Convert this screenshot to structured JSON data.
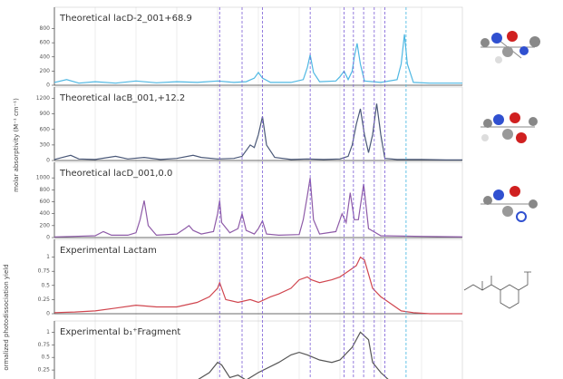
{
  "axis_labels": [
    "molar absorptivity (M⁻¹ cm⁻¹)",
    "ormalized photodissociation yield"
  ],
  "reference_lines": {
    "x": [
      40.5,
      46,
      51,
      62.7,
      71,
      73.3,
      75.8,
      78.4,
      81,
      86.2
    ],
    "colors": [
      "#7b5cd6",
      "#7b5cd6",
      "#7b5cd6",
      "#7b5cd6",
      "#7b5cd6",
      "#7b5cd6",
      "#7b5cd6",
      "#7b5cd6",
      "#7b5cd6",
      "#3fb5e0"
    ]
  },
  "chart_data": [
    {
      "type": "line",
      "title": "Theoretical lacD-2_001+68.9",
      "color": "#4fb8e3",
      "xlim": [
        0,
        100
      ],
      "ylim": [
        0,
        1050
      ],
      "yticks": [
        0,
        200,
        400,
        600,
        800
      ],
      "x": [
        0,
        3,
        6,
        10,
        15,
        20,
        25,
        30,
        35,
        40,
        44,
        47,
        49,
        50,
        51,
        53,
        58,
        61,
        62,
        62.7,
        63.5,
        65,
        69,
        70,
        71,
        72,
        73,
        73.5,
        74.2,
        75,
        76,
        80,
        84,
        85,
        85.8,
        86.5,
        88,
        92,
        96,
        100
      ],
      "values": [
        40,
        80,
        30,
        50,
        30,
        60,
        35,
        50,
        40,
        60,
        40,
        50,
        100,
        180,
        100,
        40,
        40,
        80,
        250,
        430,
        180,
        50,
        60,
        120,
        200,
        80,
        200,
        400,
        590,
        300,
        60,
        40,
        80,
        300,
        720,
        300,
        40,
        30,
        30,
        30
      ]
    },
    {
      "type": "line",
      "title": "Theoretical lacB_001,+12.2",
      "color": "#4a5878",
      "xlim": [
        0,
        100
      ],
      "ylim": [
        0,
        1350
      ],
      "yticks": [
        0,
        300,
        600,
        900,
        1200
      ],
      "x": [
        0,
        2,
        4,
        6,
        10,
        15,
        18,
        22,
        26,
        30,
        34,
        36,
        40,
        44,
        46,
        48,
        49,
        50,
        51,
        52,
        54,
        58,
        62,
        66,
        70,
        72,
        73,
        74,
        75,
        76,
        77,
        78,
        79,
        80,
        81,
        84,
        90,
        96,
        100
      ],
      "values": [
        20,
        60,
        100,
        30,
        20,
        80,
        30,
        60,
        20,
        40,
        100,
        60,
        30,
        40,
        80,
        300,
        250,
        500,
        850,
        300,
        60,
        20,
        30,
        20,
        30,
        80,
        300,
        700,
        1000,
        500,
        150,
        500,
        1100,
        500,
        40,
        20,
        20,
        10,
        10
      ]
    },
    {
      "type": "line",
      "title": "Theoretical lacD_001,0.0",
      "color": "#8e5ba8",
      "xlim": [
        0,
        100
      ],
      "ylim": [
        0,
        1200
      ],
      "yticks": [
        0,
        200,
        400,
        600,
        800,
        1000
      ],
      "x": [
        0,
        5,
        10,
        12,
        14,
        18,
        20,
        21,
        22,
        23,
        25,
        30,
        32,
        33,
        34,
        36,
        39,
        40,
        40.5,
        41,
        43,
        45,
        46,
        47,
        49,
        50,
        51,
        52,
        55,
        60,
        61,
        62,
        62.7,
        63.5,
        65,
        69,
        70.5,
        71.5,
        72.5,
        73.5,
        74.5,
        75.8,
        77,
        80,
        90,
        100
      ],
      "values": [
        10,
        20,
        30,
        100,
        40,
        40,
        80,
        300,
        620,
        200,
        40,
        60,
        150,
        200,
        120,
        60,
        100,
        400,
        620,
        250,
        80,
        150,
        400,
        120,
        60,
        150,
        280,
        60,
        40,
        50,
        300,
        700,
        1000,
        300,
        60,
        100,
        400,
        250,
        750,
        300,
        300,
        900,
        150,
        30,
        20,
        10
      ]
    },
    {
      "type": "line",
      "title": "Experimental Lactam",
      "color": "#d0464f",
      "xlim": [
        0,
        100
      ],
      "ylim": [
        0,
        1.25
      ],
      "yticks": [
        0,
        0.25,
        0.5,
        0.75,
        1
      ],
      "x": [
        0,
        5,
        10,
        15,
        20,
        25,
        30,
        35,
        38,
        40,
        40.5,
        42,
        45,
        48,
        50,
        53,
        55,
        58,
        60,
        62,
        63,
        65,
        68,
        70,
        72,
        74,
        75,
        76,
        77,
        78,
        80,
        82,
        85,
        88,
        92,
        96,
        100
      ],
      "values": [
        0.02,
        0.03,
        0.05,
        0.1,
        0.15,
        0.12,
        0.12,
        0.2,
        0.3,
        0.45,
        0.55,
        0.25,
        0.2,
        0.25,
        0.2,
        0.3,
        0.35,
        0.45,
        0.6,
        0.65,
        0.6,
        0.55,
        0.6,
        0.65,
        0.75,
        0.85,
        1.0,
        0.95,
        0.7,
        0.45,
        0.3,
        0.2,
        0.05,
        0.02,
        0,
        0,
        0
      ]
    },
    {
      "type": "line",
      "title": "Experimental b₁⁺Fragment",
      "color": "#555555",
      "xlim": [
        0,
        100
      ],
      "ylim": [
        0,
        1.15
      ],
      "yticks": [
        0.25,
        0.5,
        0.75,
        1
      ],
      "x": [
        30,
        35,
        38,
        40,
        41,
        43,
        45,
        47,
        50,
        55,
        58,
        60,
        62,
        65,
        68,
        70,
        73,
        75,
        77,
        78,
        80,
        82,
        85
      ],
      "values": [
        0,
        0.05,
        0.2,
        0.4,
        0.35,
        0.1,
        0.15,
        0.05,
        0.2,
        0.4,
        0.55,
        0.6,
        0.55,
        0.45,
        0.4,
        0.45,
        0.7,
        1.0,
        0.85,
        0.4,
        0.2,
        0.05,
        0
      ]
    }
  ]
}
